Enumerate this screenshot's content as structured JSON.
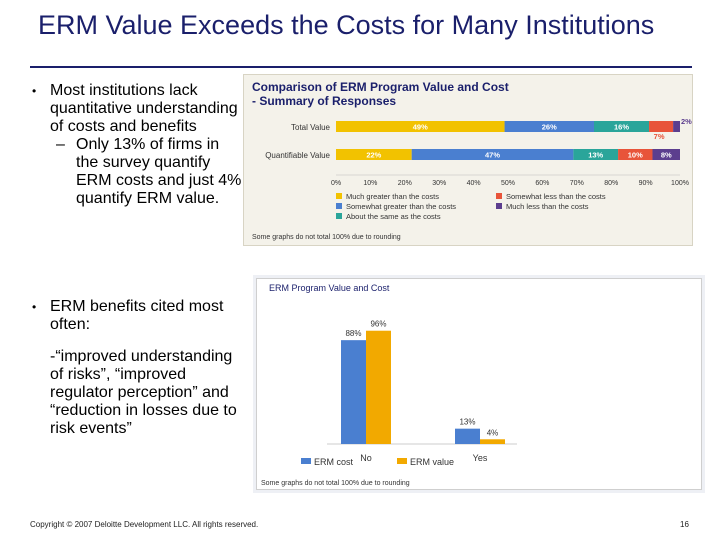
{
  "slide": {
    "title": "ERM Value Exceeds the Costs for Many Institutions",
    "bullet1": "Most institutions lack quantitative understanding of costs and benefits",
    "bullet1_sub": "Only 13% of firms in the survey quantify ERM costs and just 4% quantify ERM value.",
    "bullet2": "ERM benefits cited most often:",
    "bullet2_quote": "-“improved understanding of risks”, “improved regulator perception” and “reduction in losses due to risk events”",
    "footer": "Copyright © 2007 Deloitte Development LLC. All rights reserved.",
    "page_number": "16",
    "sub_dash": "–"
  },
  "colors": {
    "title": "#1a1f6b",
    "much_greater": "#f2c200",
    "somewhat_greater": "#4a7fd0",
    "about_same": "#2aa59a",
    "somewhat_less": "#e8543a",
    "much_less": "#5c3e8e",
    "erm_cost": "#4a7fd0",
    "erm_value": "#f2a900",
    "chart_title": "#1a1f6b"
  },
  "chart_data": [
    {
      "type": "bar",
      "orientation": "horizontal",
      "stacked": true,
      "title": "Comparison of ERM Program Value and Cost - Summary of Responses",
      "title_line1": "Comparison of ERM Program Value and Cost",
      "title_line2": "- Summary of Responses",
      "categories": [
        "Total Value",
        "Quantifiable Value"
      ],
      "series": [
        {
          "name": "Much greater than the costs",
          "color": "#f2c200",
          "values": [
            49,
            22
          ],
          "labels": [
            "49%",
            "22%"
          ]
        },
        {
          "name": "Somewhat greater than the costs",
          "color": "#4a7fd0",
          "values": [
            26,
            47
          ],
          "labels": [
            "26%",
            "47%"
          ]
        },
        {
          "name": "About the same as the costs",
          "color": "#2aa59a",
          "values": [
            16,
            13
          ],
          "labels": [
            "16%",
            "13%"
          ]
        },
        {
          "name": "Somewhat less than the costs",
          "color": "#e8543a",
          "values": [
            7,
            10
          ],
          "labels": [
            "7%",
            "10%"
          ]
        },
        {
          "name": "Much less than the costs",
          "color": "#5c3e8e",
          "values": [
            2,
            8
          ],
          "labels": [
            "2%",
            "8%"
          ]
        }
      ],
      "xlim": [
        0,
        100
      ],
      "xticks": [
        "0%",
        "10%",
        "20%",
        "30%",
        "40%",
        "50%",
        "60%",
        "70%",
        "80%",
        "90%",
        "100%"
      ],
      "legend": [
        {
          "label": "Much greater than the costs",
          "color": "#f2c200"
        },
        {
          "label": "Somewhat greater than the costs",
          "color": "#4a7fd0"
        },
        {
          "label": "About the same as the costs",
          "color": "#2aa59a"
        },
        {
          "label": "Somewhat less than the costs",
          "color": "#e8543a"
        },
        {
          "label": "Much less than the costs",
          "color": "#5c3e8e"
        }
      ],
      "note": "Some graphs do not total 100% due to rounding"
    },
    {
      "type": "bar",
      "title": "ERM Program Value and Cost",
      "categories": [
        "No",
        "Yes"
      ],
      "series": [
        {
          "name": "ERM cost",
          "color": "#4a7fd0",
          "values": [
            88,
            13
          ],
          "labels": [
            "88%",
            "13%"
          ]
        },
        {
          "name": "ERM value",
          "color": "#f2a900",
          "values": [
            96,
            4
          ],
          "labels": [
            "96%",
            "4%"
          ]
        }
      ],
      "ylim": [
        0,
        100
      ],
      "legend": [
        {
          "label": "ERM cost",
          "color": "#4a7fd0"
        },
        {
          "label": "ERM value",
          "color": "#f2a900"
        }
      ],
      "note": "Some graphs do not total 100% due to rounding"
    }
  ]
}
